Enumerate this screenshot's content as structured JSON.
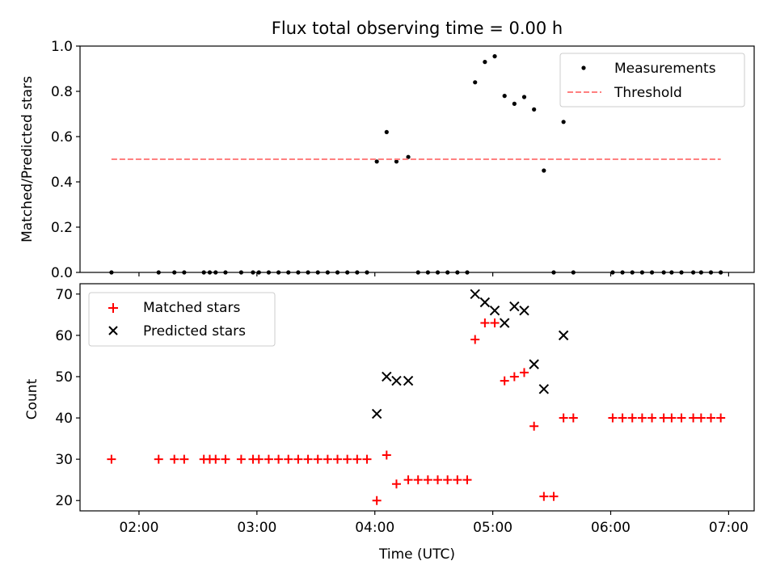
{
  "chart_data": [
    {
      "type": "scatter",
      "title": "Flux total observing time = 0.00 h",
      "xlabel": "",
      "ylabel": "Matched/Predicted stars",
      "ylim": [
        0,
        1.0
      ],
      "yticks": [
        0.0,
        0.2,
        0.4,
        0.6,
        0.8,
        1.0
      ],
      "ytick_labels": [
        "0.0",
        "0.2",
        "0.4",
        "0.6",
        "0.8",
        "1.0"
      ],
      "legend_position": "top-right",
      "series": [
        {
          "name": "Measurements",
          "kind": "scatter",
          "marker": "dot",
          "color": "#000000",
          "x": [
            "01:46",
            "02:10",
            "02:18",
            "02:23",
            "02:33",
            "02:36",
            "02:39",
            "02:44",
            "02:52",
            "02:58",
            "03:01",
            "03:06",
            "03:11",
            "03:16",
            "03:21",
            "03:26",
            "03:31",
            "03:36",
            "03:41",
            "03:46",
            "03:51",
            "03:56",
            "04:01",
            "04:06",
            "04:11",
            "04:17",
            "04:22",
            "04:27",
            "04:32",
            "04:37",
            "04:42",
            "04:47",
            "04:51",
            "04:56",
            "05:01",
            "05:06",
            "05:11",
            "05:16",
            "05:21",
            "05:26",
            "05:31",
            "05:36",
            "05:41",
            "06:01",
            "06:06",
            "06:11",
            "06:16",
            "06:21",
            "06:27",
            "06:31",
            "06:36",
            "06:42",
            "06:46",
            "06:51",
            "06:56"
          ],
          "y": [
            0,
            0,
            0,
            0,
            0,
            0,
            0,
            0,
            0,
            0,
            0,
            0,
            0,
            0,
            0,
            0,
            0,
            0,
            0,
            0,
            0,
            0,
            0.49,
            0.62,
            0.49,
            0.51,
            0,
            0,
            0,
            0,
            0,
            0,
            0.84,
            0.93,
            0.955,
            0.78,
            0.745,
            0.775,
            0.72,
            0.45,
            0,
            0.665,
            0,
            0,
            0,
            0,
            0,
            0,
            0,
            0,
            0,
            0,
            0,
            0,
            0
          ]
        },
        {
          "name": "Threshold",
          "kind": "line",
          "dash": true,
          "color": "#ff8080",
          "x": [
            "01:46",
            "06:56"
          ],
          "y": [
            0.5,
            0.5
          ]
        }
      ]
    },
    {
      "type": "scatter",
      "title": "",
      "xlabel": "Time (UTC)",
      "ylabel": "Count",
      "ylim": [
        17.5,
        72.5
      ],
      "yticks": [
        20,
        30,
        40,
        50,
        60,
        70
      ],
      "ytick_labels": [
        "20",
        "30",
        "40",
        "50",
        "60",
        "70"
      ],
      "xlim": [
        "01:30",
        "07:13"
      ],
      "xticks": [
        "02:00",
        "03:00",
        "04:00",
        "05:00",
        "06:00",
        "07:00"
      ],
      "xtick_labels": [
        "02:00",
        "03:00",
        "04:00",
        "05:00",
        "06:00",
        "07:00"
      ],
      "legend_position": "top-left",
      "series": [
        {
          "name": "Matched stars",
          "kind": "scatter",
          "marker": "plus",
          "color": "#ff0000",
          "x": [
            "01:46",
            "02:10",
            "02:18",
            "02:23",
            "02:33",
            "02:36",
            "02:39",
            "02:44",
            "02:52",
            "02:58",
            "03:01",
            "03:06",
            "03:11",
            "03:16",
            "03:21",
            "03:26",
            "03:31",
            "03:36",
            "03:41",
            "03:46",
            "03:51",
            "03:56",
            "04:01",
            "04:06",
            "04:11",
            "04:17",
            "04:22",
            "04:27",
            "04:32",
            "04:37",
            "04:42",
            "04:47",
            "04:51",
            "04:56",
            "05:01",
            "05:06",
            "05:11",
            "05:16",
            "05:21",
            "05:26",
            "05:31",
            "05:36",
            "05:41",
            "06:01",
            "06:06",
            "06:11",
            "06:16",
            "06:21",
            "06:27",
            "06:31",
            "06:36",
            "06:42",
            "06:46",
            "06:51",
            "06:56"
          ],
          "y": [
            30,
            30,
            30,
            30,
            30,
            30,
            30,
            30,
            30,
            30,
            30,
            30,
            30,
            30,
            30,
            30,
            30,
            30,
            30,
            30,
            30,
            30,
            20,
            31,
            24,
            25,
            25,
            25,
            25,
            25,
            25,
            25,
            59,
            63,
            63,
            49,
            50,
            51,
            38,
            21,
            21,
            40,
            40,
            40,
            40,
            40,
            40,
            40,
            40,
            40,
            40,
            40,
            40,
            40,
            40
          ]
        },
        {
          "name": "Predicted stars",
          "kind": "scatter",
          "marker": "x",
          "color": "#000000",
          "x": [
            "04:01",
            "04:06",
            "04:11",
            "04:17",
            "04:51",
            "04:56",
            "05:01",
            "05:06",
            "05:11",
            "05:16",
            "05:21",
            "05:26",
            "05:36"
          ],
          "y": [
            41,
            50,
            49,
            49,
            70,
            68,
            66,
            63,
            67,
            66,
            53,
            47,
            60
          ]
        }
      ]
    }
  ]
}
